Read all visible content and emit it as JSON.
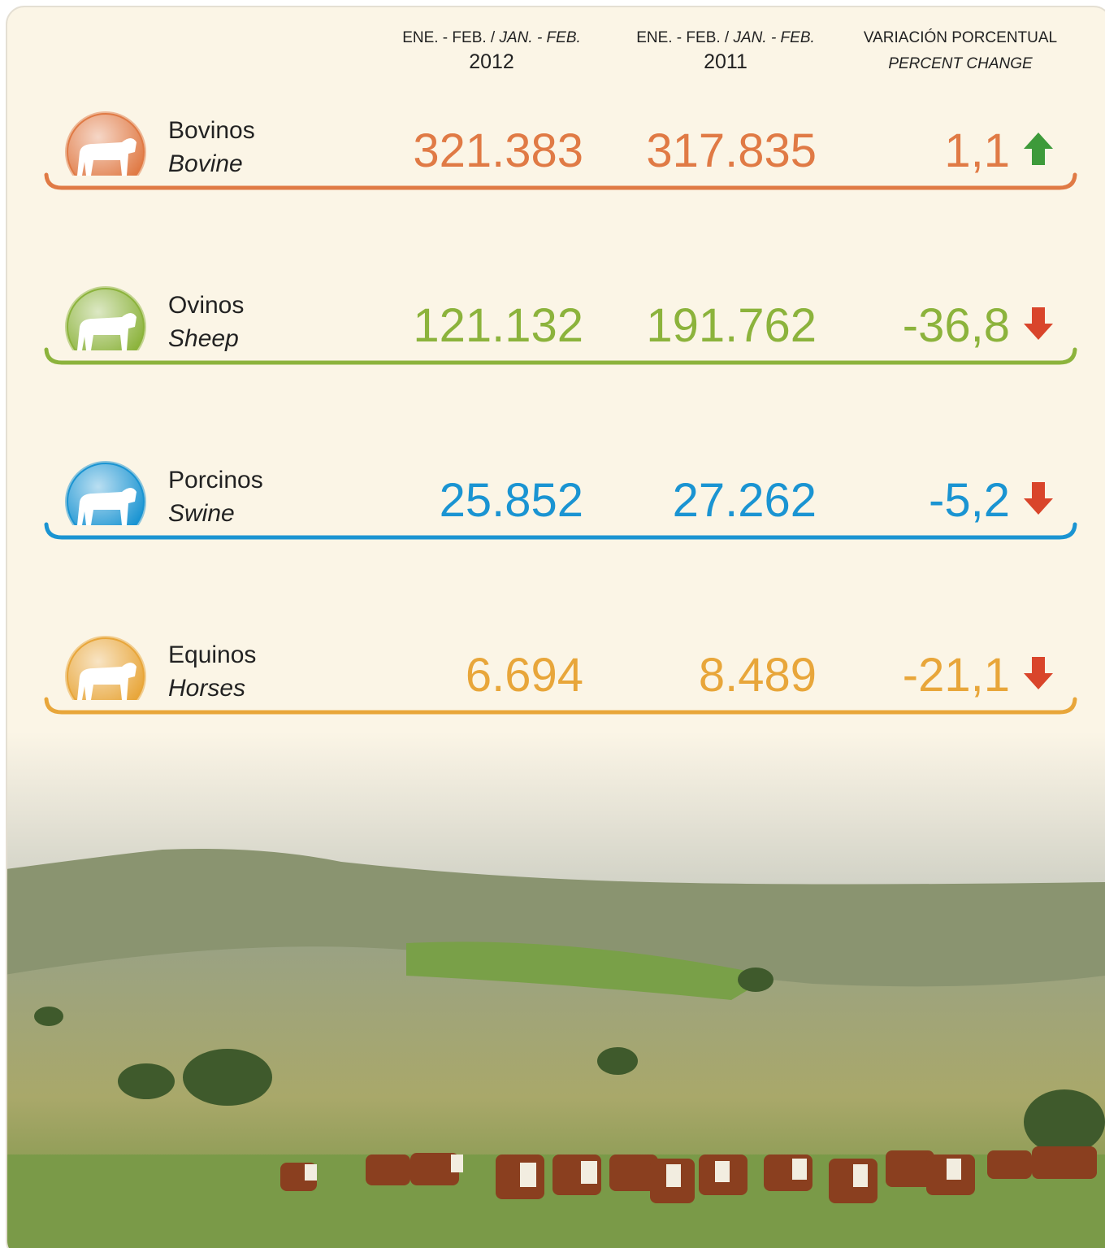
{
  "header": {
    "columns": [
      {
        "label_es": "ENE. - FEB. /",
        "label_en": "JAN. - FEB.",
        "year": "2012"
      },
      {
        "label_es": "ENE. - FEB. /",
        "label_en": "JAN. - FEB.",
        "year": "2011"
      },
      {
        "label_es": "VARIACIÓN PORCENTUAL",
        "label_en": "PERCENT CHANGE"
      }
    ]
  },
  "rows": [
    {
      "name_es": "Bovinos",
      "name_en": "Bovine",
      "value_2012": "321.383",
      "value_2011": "317.835",
      "change": "1,1",
      "direction": "up",
      "color": "#e07a45"
    },
    {
      "name_es": "Ovinos",
      "name_en": "Sheep",
      "value_2012": "121.132",
      "value_2011": "191.762",
      "change": "-36,8",
      "direction": "down",
      "color": "#8cb33c"
    },
    {
      "name_es": "Porcinos",
      "name_en": "Swine",
      "value_2012": "25.852",
      "value_2011": "27.262",
      "change": "-5,2",
      "direction": "down",
      "color": "#1a94d2"
    },
    {
      "name_es": "Equinos",
      "name_en": "Horses",
      "value_2012": "6.694",
      "value_2011": "8.489",
      "change": "-21,1",
      "direction": "down",
      "color": "#e8a63a"
    }
  ]
}
